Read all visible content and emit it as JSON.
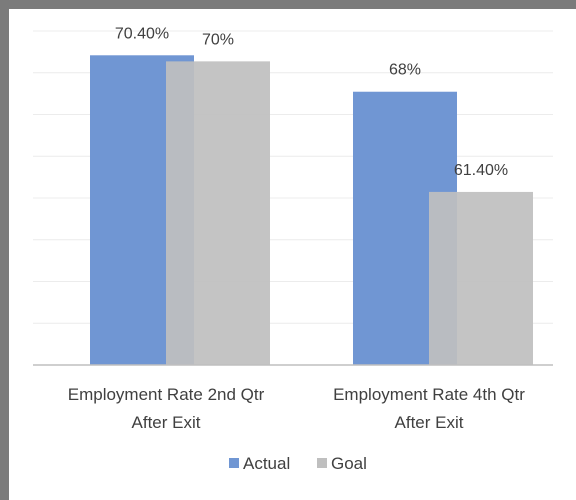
{
  "chart_data": {
    "type": "bar",
    "categories": [
      [
        "Employment Rate 2nd Qtr",
        "After Exit"
      ],
      [
        "Employment Rate 4th Qtr",
        "After Exit"
      ]
    ],
    "series": [
      {
        "name": "Actual",
        "values": [
          70.4,
          68
        ],
        "labels": [
          "70.40%",
          "68%"
        ],
        "color": "#7096d3"
      },
      {
        "name": "Goal",
        "values": [
          70,
          61.4
        ],
        "labels": [
          "70%",
          "61.40%"
        ],
        "color": "#bfbfbf"
      }
    ],
    "ylim": [
      50,
      72
    ],
    "grid": true,
    "legend": "bottom",
    "title": "",
    "xlabel": "",
    "ylabel": ""
  }
}
